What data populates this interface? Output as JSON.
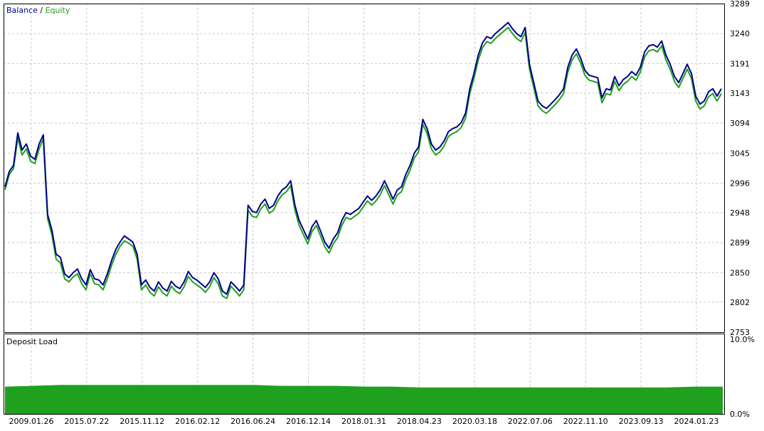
{
  "legend": {
    "balance_label": "Balance",
    "separator": " / ",
    "equity_label": "Equity",
    "balance_color": "#00008b",
    "equity_color": "#1fa01f"
  },
  "colors": {
    "balance": "#00008b",
    "equity": "#1fa01f",
    "deposit_load": "#1fa01f",
    "grid": "#c8c8c8",
    "frame": "#000000"
  },
  "chart_data": [
    {
      "type": "line",
      "title": "",
      "legend": [
        "Balance",
        "Equity"
      ],
      "ylim": [
        2753,
        3289
      ],
      "y_ticks": [
        3289,
        3240,
        3191,
        3143,
        3094,
        3045,
        2996,
        2948,
        2899,
        2850,
        2802,
        2753
      ],
      "x_ticks": [
        "2009.01.26",
        "2015.07.22",
        "2015.11.12",
        "2016.02.12",
        "2016.06.24",
        "2016.12.14",
        "2018.01.31",
        "2018.04.23",
        "2020.03.18",
        "2022.07.06",
        "2022.11.10",
        "2023.09.13",
        "2024.01.23"
      ],
      "grid": true,
      "series": [
        {
          "name": "Balance",
          "values": [
            2990,
            3015,
            3025,
            3078,
            3050,
            3060,
            3040,
            3035,
            3060,
            3075,
            2945,
            2920,
            2880,
            2875,
            2848,
            2842,
            2850,
            2856,
            2840,
            2830,
            2855,
            2840,
            2838,
            2830,
            2848,
            2870,
            2888,
            2900,
            2910,
            2905,
            2900,
            2880,
            2830,
            2838,
            2826,
            2820,
            2835,
            2825,
            2820,
            2836,
            2828,
            2824,
            2835,
            2852,
            2842,
            2838,
            2832,
            2826,
            2835,
            2850,
            2840,
            2820,
            2815,
            2835,
            2828,
            2820,
            2830,
            2960,
            2950,
            2948,
            2962,
            2970,
            2955,
            2960,
            2975,
            2985,
            2990,
            3000,
            2960,
            2935,
            2920,
            2905,
            2925,
            2935,
            2918,
            2900,
            2890,
            2905,
            2915,
            2935,
            2948,
            2945,
            2950,
            2955,
            2965,
            2975,
            2968,
            2975,
            2985,
            3000,
            2985,
            2970,
            2985,
            2990,
            3010,
            3025,
            3045,
            3055,
            3100,
            3085,
            3060,
            3050,
            3055,
            3065,
            3080,
            3085,
            3088,
            3095,
            3110,
            3150,
            3175,
            3205,
            3225,
            3235,
            3232,
            3240,
            3246,
            3252,
            3258,
            3248,
            3240,
            3235,
            3250,
            3190,
            3160,
            3130,
            3122,
            3118,
            3125,
            3132,
            3140,
            3150,
            3185,
            3205,
            3215,
            3200,
            3180,
            3172,
            3170,
            3168,
            3135,
            3150,
            3148,
            3170,
            3155,
            3165,
            3170,
            3178,
            3172,
            3185,
            3210,
            3220,
            3222,
            3218,
            3228,
            3205,
            3190,
            3170,
            3160,
            3175,
            3190,
            3175,
            3138,
            3125,
            3130,
            3145,
            3150,
            3138,
            3150
          ]
        },
        {
          "name": "Equity",
          "values": [
            2985,
            3010,
            3020,
            3070,
            3042,
            3052,
            3032,
            3028,
            3052,
            3068,
            2938,
            2912,
            2872,
            2866,
            2840,
            2835,
            2843,
            2848,
            2832,
            2822,
            2848,
            2832,
            2830,
            2822,
            2840,
            2862,
            2880,
            2893,
            2902,
            2898,
            2893,
            2872,
            2822,
            2830,
            2818,
            2812,
            2827,
            2817,
            2812,
            2828,
            2820,
            2816,
            2827,
            2844,
            2835,
            2830,
            2825,
            2818,
            2827,
            2842,
            2832,
            2812,
            2808,
            2828,
            2820,
            2812,
            2822,
            2952,
            2942,
            2940,
            2954,
            2962,
            2947,
            2952,
            2967,
            2977,
            2982,
            2992,
            2952,
            2927,
            2912,
            2897,
            2917,
            2927,
            2910,
            2892,
            2882,
            2897,
            2907,
            2927,
            2940,
            2937,
            2942,
            2947,
            2957,
            2967,
            2960,
            2967,
            2977,
            2992,
            2977,
            2962,
            2977,
            2982,
            3002,
            3017,
            3037,
            3047,
            3092,
            3077,
            3052,
            3042,
            3047,
            3057,
            3072,
            3077,
            3080,
            3087,
            3102,
            3142,
            3167,
            3197,
            3217,
            3227,
            3224,
            3232,
            3238,
            3244,
            3250,
            3240,
            3232,
            3227,
            3242,
            3182,
            3152,
            3122,
            3114,
            3110,
            3117,
            3124,
            3132,
            3142,
            3177,
            3197,
            3207,
            3192,
            3172,
            3164,
            3162,
            3160,
            3127,
            3142,
            3140,
            3162,
            3147,
            3157,
            3162,
            3170,
            3164,
            3177,
            3202,
            3212,
            3214,
            3210,
            3220,
            3197,
            3182,
            3162,
            3152,
            3167,
            3182,
            3167,
            3130,
            3117,
            3122,
            3137,
            3142,
            3130,
            3142
          ]
        }
      ]
    },
    {
      "type": "area",
      "title": "Deposit Load",
      "ylim": [
        0,
        10
      ],
      "y_ticks": [
        "10.0%",
        "0.0%"
      ],
      "x_ticks": [
        "2009.01.26",
        "2015.07.22",
        "2015.11.12",
        "2016.02.12",
        "2016.06.24",
        "2016.12.14",
        "2018.01.31",
        "2018.04.23",
        "2020.03.18",
        "2022.07.06",
        "2022.11.10",
        "2023.09.13",
        "2024.01.23"
      ],
      "series": [
        {
          "name": "Deposit Load",
          "values": [
            3.4,
            3.5,
            3.6,
            3.6,
            3.6,
            3.6,
            3.6,
            3.6,
            3.6,
            3.6,
            3.5,
            3.5,
            3.5,
            3.4,
            3.4,
            3.3,
            3.3,
            3.3,
            3.3,
            3.3,
            3.3,
            3.3,
            3.3,
            3.3,
            3.3,
            3.4,
            3.4
          ]
        }
      ]
    }
  ]
}
